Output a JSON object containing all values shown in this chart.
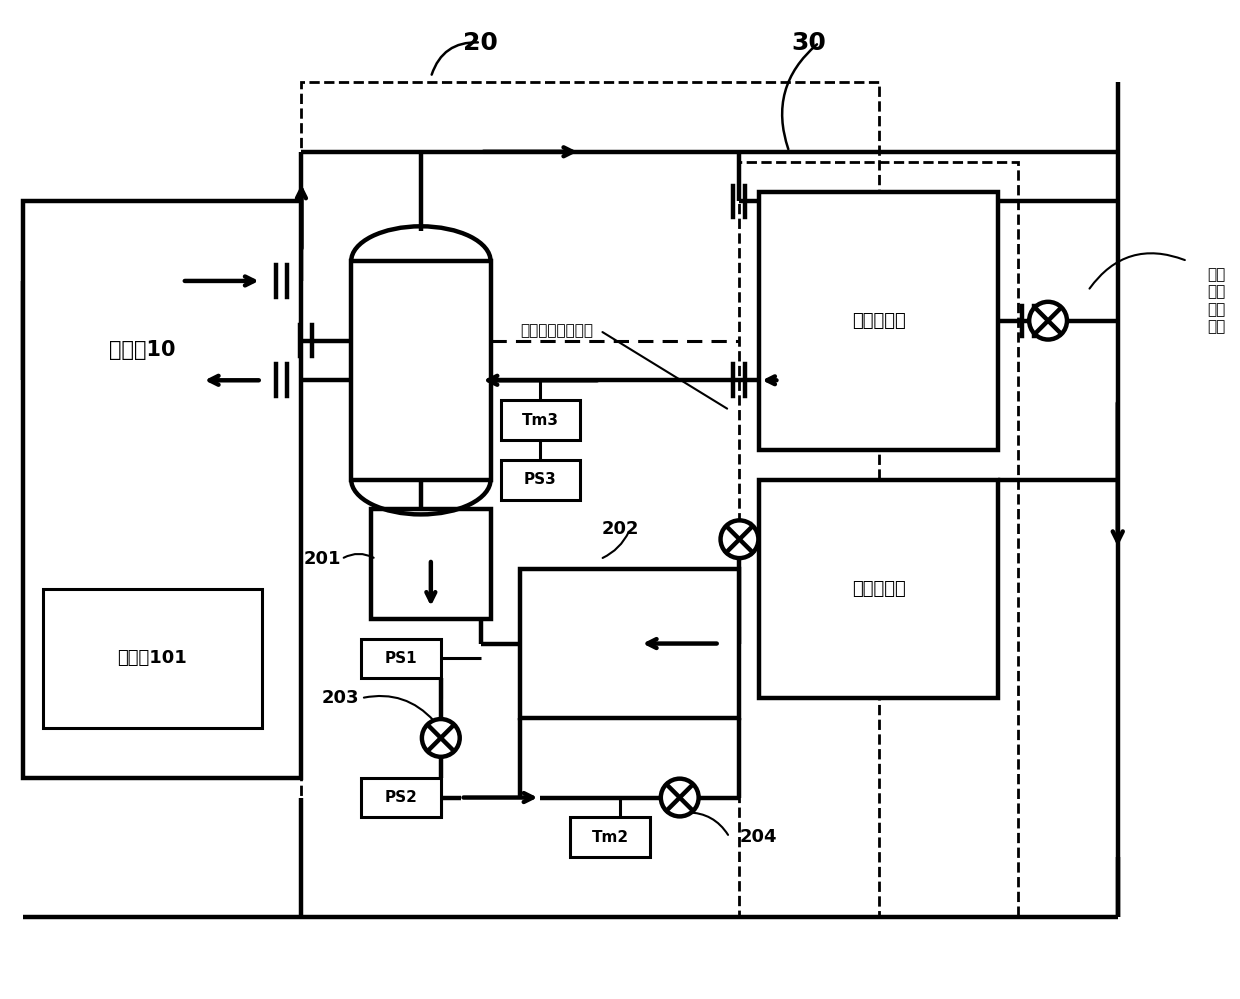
{
  "bg": "#ffffff",
  "lc": "#000000",
  "lw": 2.2,
  "tlw": 3.2,
  "fig_w": 12.4,
  "fig_h": 9.99,
  "dpi": 100,
  "texts": {
    "outdoor": "室外机10",
    "compressor": "压缩机101",
    "n20": "20",
    "n30": "30",
    "heat_in": "制热室内机",
    "cool_in": "制冷室内机",
    "heat_valve": "制热\n室内\n机节\n流阀",
    "cool_valve": "制冷室内机节流阀",
    "tm3": "Tm3",
    "ps3": "PS3",
    "ps1": "PS1",
    "ps2": "PS2",
    "tm2": "Tm2",
    "v201": "201",
    "v202": "202",
    "v203": "203",
    "v204": "204"
  }
}
